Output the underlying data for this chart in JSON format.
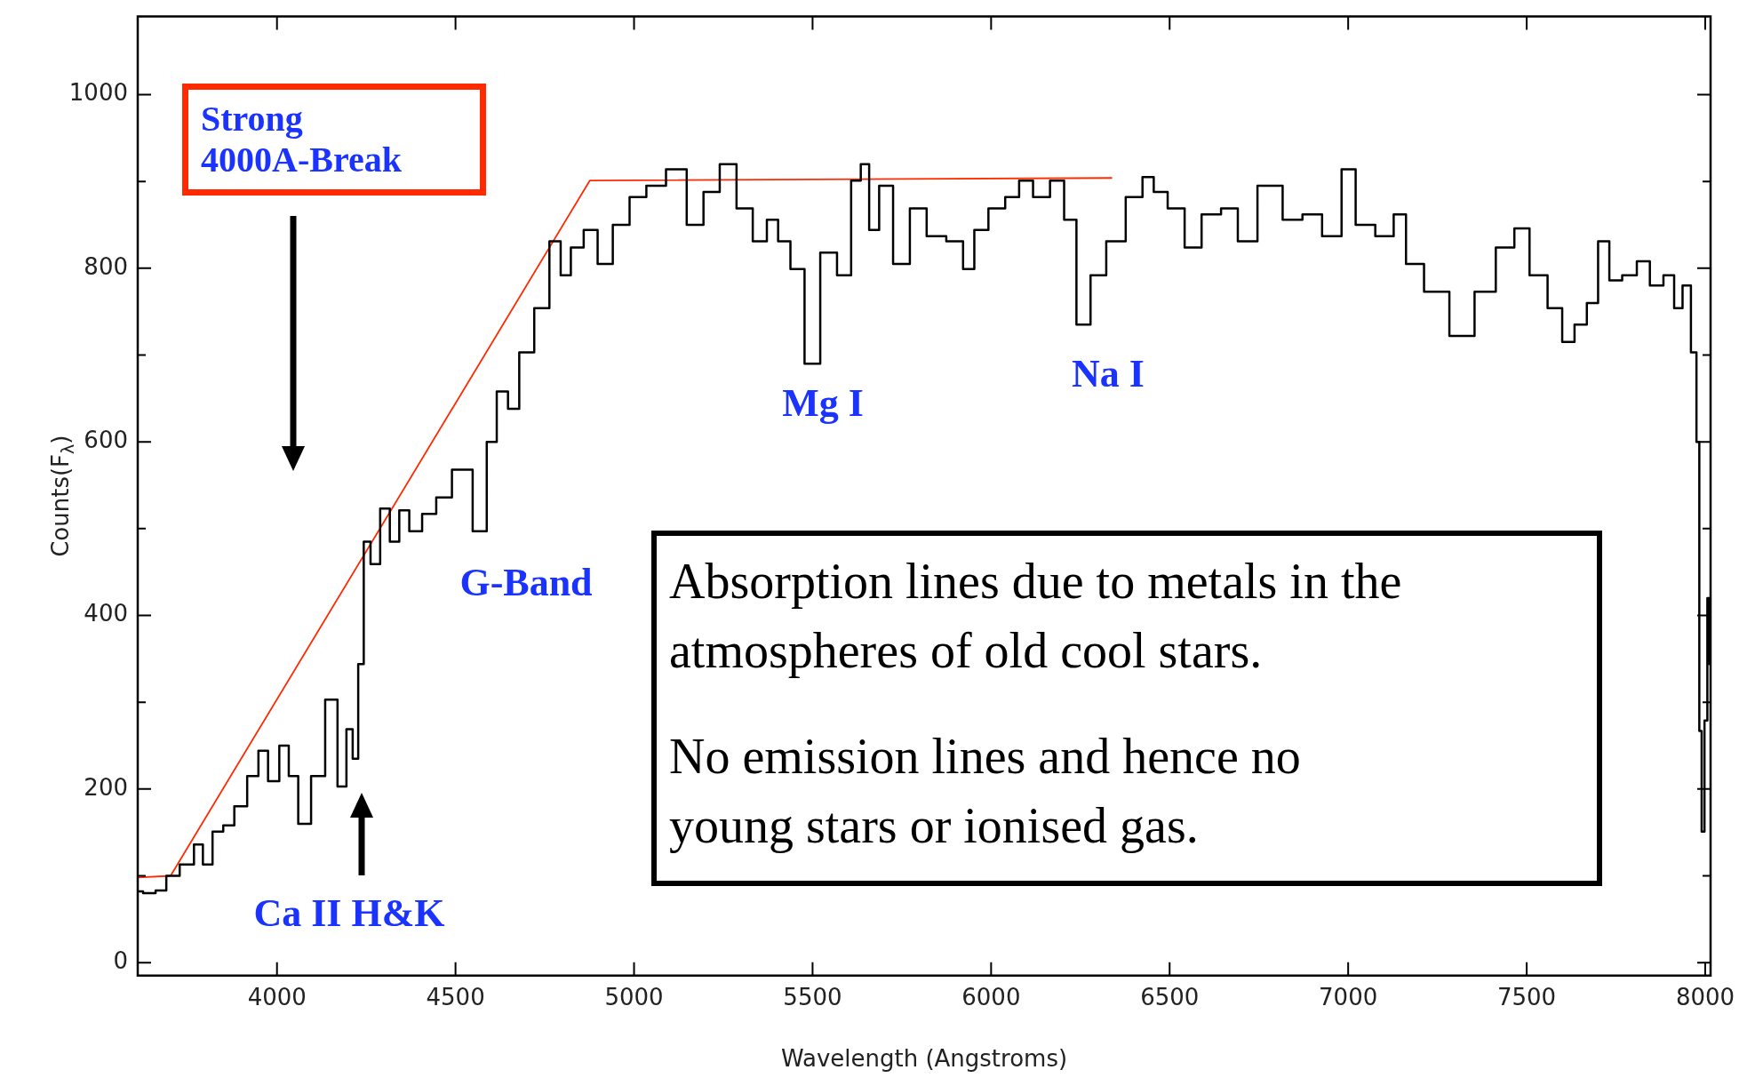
{
  "chart_data": {
    "type": "line",
    "xlabel": "Wavelength (Angstroms)",
    "ylabel": "Counts(F$_{λ}$)",
    "xlim": [
      3610,
      8015
    ],
    "ylim": [
      -15,
      1090
    ],
    "xticks": [
      4000,
      4500,
      5000,
      5500,
      6000,
      6500,
      7000,
      7500,
      8000
    ],
    "yticks": [
      0,
      {
        "value": 100,
        "label": null
      },
      200,
      {
        "value": 300,
        "label": null
      },
      400,
      {
        "value": 500,
        "label": null
      },
      600,
      {
        "value": 700,
        "label": null
      },
      800,
      {
        "value": 900,
        "label": null
      },
      1000
    ],
    "series": [
      {
        "type": "step",
        "color": "#000000",
        "x": [
          3610,
          3640,
          3680,
          3700,
          3755,
          3780,
          3805,
          3834,
          3865,
          3896,
          3937,
          3959,
          3991,
          4022,
          4044,
          4075,
          4116,
          4154,
          4185,
          4204,
          4220,
          4235,
          4251,
          4273,
          4305,
          4327,
          4358,
          4383,
          4430,
          4462,
          4518,
          4578,
          4597,
          4634,
          4660,
          4697,
          4744,
          4782,
          4807,
          4839,
          4879,
          4917,
          4964,
          5011,
          5058,
          5121,
          5174,
          5215,
          5265,
          5309,
          5356,
          5388,
          5419,
          5457,
          5498,
          5545,
          5592,
          5624,
          5646,
          5671,
          5702,
          5749,
          5796,
          5843,
          5906,
          5937,
          5969,
          6016,
          6063,
          6094,
          6141,
          6189,
          6220,
          6258,
          6299,
          6346,
          6408,
          6440,
          6471,
          6518,
          6566,
          6613,
          6675,
          6707,
          6785,
          6848,
          6896,
          6958,
          7005,
          7037,
          7115,
          7140,
          7184,
          7241,
          7326,
          7382,
          7445,
          7486,
          7530,
          7587,
          7612,
          7656,
          7681,
          7719,
          7744,
          7791,
          7826,
          7864,
          7902,
          7924,
          7949,
          7971,
          7980,
          7987,
          7993,
          8003,
          8009,
          8015
        ],
        "values": [
          82,
          80,
          83,
          100,
          113,
          136,
          113,
          151,
          158,
          180,
          215,
          244,
          209,
          250,
          215,
          160,
          215,
          303,
          203,
          269,
          235,
          344,
          485,
          459,
          523,
          485,
          521,
          497,
          517,
          536,
          568,
          497,
          600,
          658,
          638,
          703,
          754,
          831,
          792,
          824,
          844,
          805,
          850,
          882,
          895,
          914,
          850,
          888,
          920,
          869,
          831,
          856,
          831,
          799,
          690,
          818,
          792,
          901,
          920,
          844,
          895,
          805,
          869,
          837,
          831,
          799,
          844,
          869,
          882,
          901,
          882,
          901,
          856,
          735,
          792,
          831,
          882,
          905,
          888,
          869,
          824,
          862,
          869,
          831,
          895,
          856,
          862,
          837,
          914,
          850,
          837,
          862,
          805,
          773,
          722,
          773,
          824,
          846,
          792,
          754,
          715,
          735,
          760,
          831,
          786,
          792,
          808,
          780,
          792,
          754,
          780,
          703,
          600,
          267,
          151,
          279,
          420,
          344
        ]
      },
      {
        "type": "line",
        "color": "#ff2a00",
        "x": [
          3610,
          3702,
          4876,
          6339
        ],
        "values": [
          98,
          100,
          901,
          904
        ]
      }
    ],
    "annotations": [
      "Strong 4000A-Break",
      "Ca II H&K",
      "G-Band",
      "Mg I",
      "Na I",
      "Absorption lines due to metals in the atmospheres of old cool stars.",
      "No emission lines and hence no young stars or ionised gas."
    ]
  }
}
